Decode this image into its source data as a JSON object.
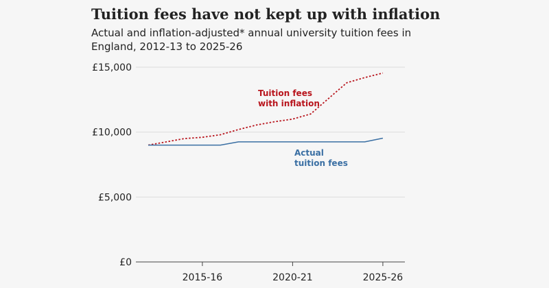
{
  "header": {
    "title": "Tuition fees have not kept up with inflation",
    "subtitle": "Actual and inflation-adjusted* annual university tuition fees in England, 2012-13 to 2025-26"
  },
  "colors": {
    "actual": "#3a6fa3",
    "inflation": "#b8141c",
    "grid": "#dcdcdc",
    "axis": "#444444"
  },
  "chart_data": {
    "type": "line",
    "title": "Tuition fees have not kept up with inflation",
    "subtitle": "Actual and inflation-adjusted* annual university tuition fees in England, 2012-13 to 2025-26",
    "x": [
      "2012-13",
      "2013-14",
      "2014-15",
      "2015-16",
      "2016-17",
      "2017-18",
      "2018-19",
      "2019-20",
      "2020-21",
      "2021-22",
      "2022-23",
      "2023-24",
      "2024-25",
      "2025-26"
    ],
    "x_tick_labels": [
      "2015-16",
      "2020-21",
      "2025-26"
    ],
    "y_ticks": [
      0,
      5000,
      10000,
      15000
    ],
    "y_tick_labels": [
      "£0",
      "£5,000",
      "£10,000",
      "£15,000"
    ],
    "ylim": [
      0,
      15000
    ],
    "grid": true,
    "series": [
      {
        "name": "Tuition fees with inflation",
        "label_lines": [
          "Tuition fees",
          "with inflation"
        ],
        "style": "dotted",
        "values": [
          9000,
          9250,
          9500,
          9600,
          9800,
          10200,
          10550,
          10800,
          11000,
          11400,
          12600,
          13800,
          14200,
          14550
        ]
      },
      {
        "name": "Actual tuition fees",
        "label_lines": [
          "Actual",
          "tuition fees"
        ],
        "style": "solid",
        "values": [
          9000,
          9000,
          9000,
          9000,
          9000,
          9250,
          9250,
          9250,
          9250,
          9250,
          9250,
          9250,
          9250,
          9535
        ]
      }
    ]
  }
}
